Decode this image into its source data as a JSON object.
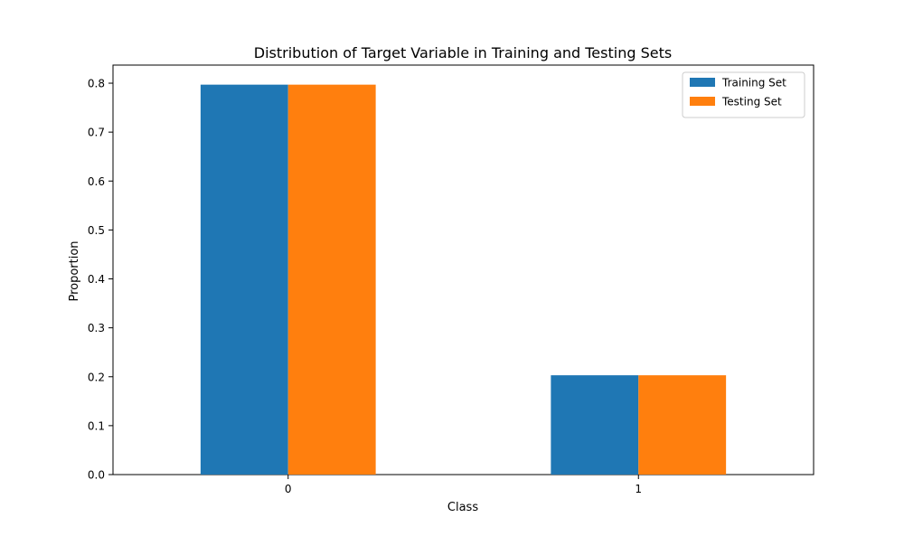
{
  "chart_data": {
    "type": "bar",
    "title": "Distribution of Target Variable in Training and Testing Sets",
    "xlabel": "Class",
    "ylabel": "Proportion",
    "categories": [
      "0",
      "1"
    ],
    "series": [
      {
        "name": "Training Set",
        "color": "#1f77b4",
        "values": [
          0.797,
          0.203
        ]
      },
      {
        "name": "Testing Set",
        "color": "#ff7f0e",
        "values": [
          0.797,
          0.203
        ]
      }
    ],
    "ylim": [
      0,
      0.837
    ],
    "yticks": [
      0.0,
      0.1,
      0.2,
      0.3,
      0.4,
      0.5,
      0.6,
      0.7,
      0.8
    ],
    "ytick_labels": [
      "0.0",
      "0.1",
      "0.2",
      "0.3",
      "0.4",
      "0.5",
      "0.6",
      "0.7",
      "0.8"
    ],
    "grid": false,
    "legend": "top-right"
  }
}
